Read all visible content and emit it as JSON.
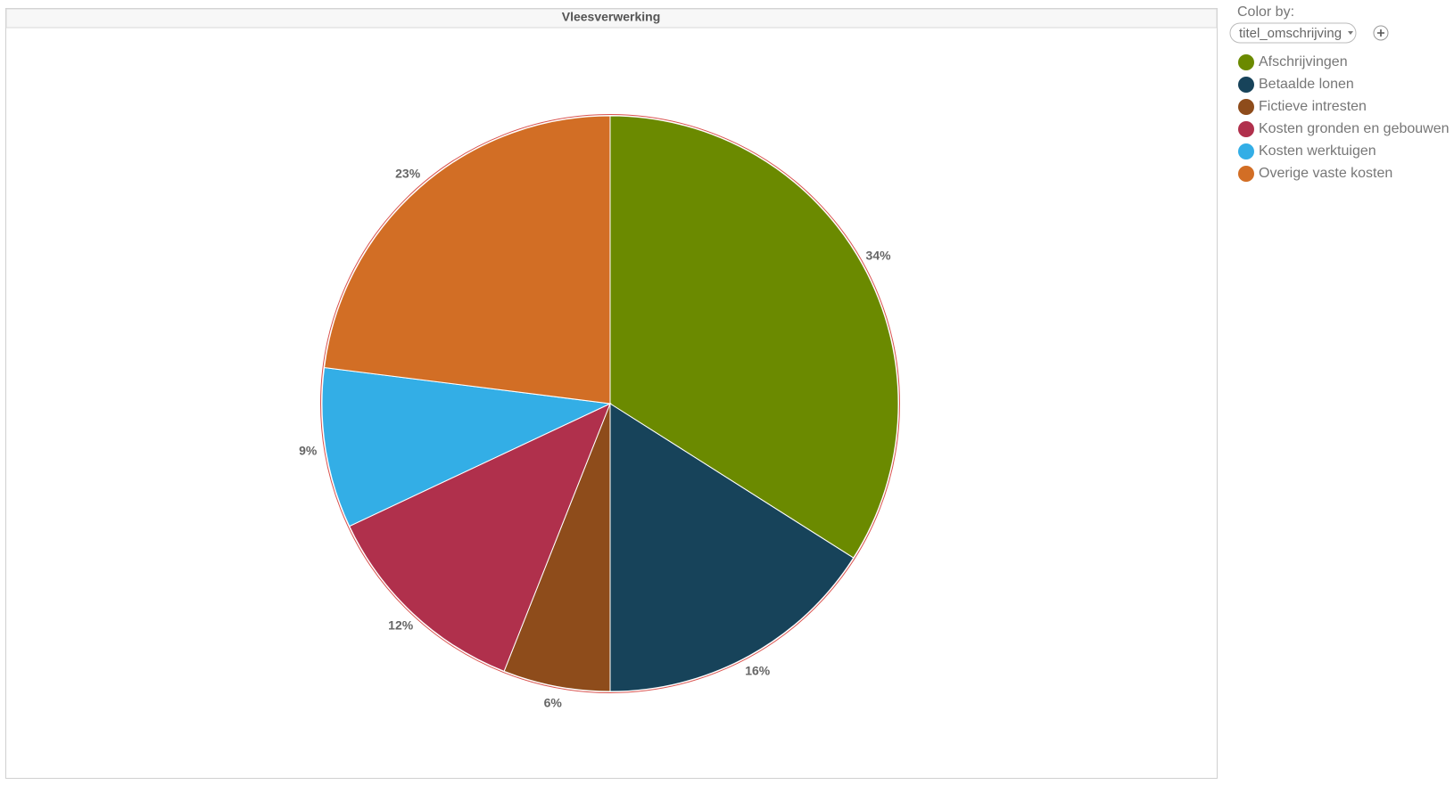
{
  "chart_data": {
    "type": "pie",
    "title": "Vleesverwerking",
    "categories": [
      "Afschrijvingen",
      "Betaalde lonen",
      "Fictieve intresten",
      "Kosten gronden en gebouwen",
      "Kosten werktuigen",
      "Overige vaste kosten"
    ],
    "values": [
      34,
      16,
      6,
      12,
      9,
      23
    ],
    "value_labels": [
      "34%",
      "16%",
      "6%",
      "12%",
      "9%",
      "23%"
    ],
    "colors": [
      "#6b8a00",
      "#17435a",
      "#8e4c1b",
      "#b0304c",
      "#33aee6",
      "#d26e25"
    ],
    "legend": "right"
  },
  "controls": {
    "color_by_label": "Color by:",
    "color_by_field": "titel_omschrijving"
  }
}
